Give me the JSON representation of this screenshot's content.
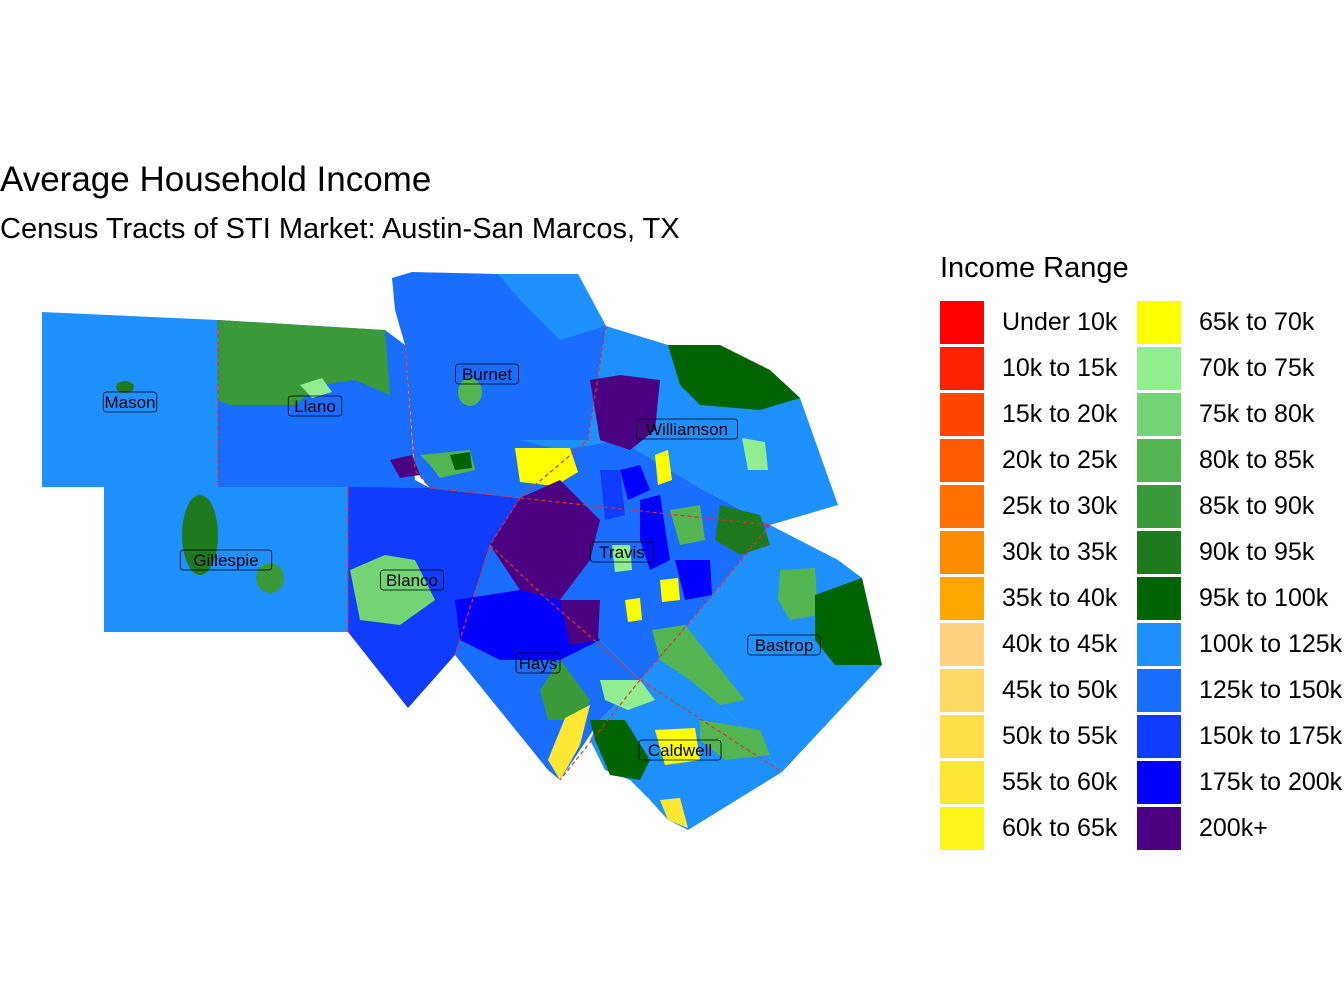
{
  "map": {
    "title": "Average Household Income",
    "subtitle": "Census Tracts of STI Market: Austin-San Marcos, TX",
    "legend_title": "Income Range",
    "legend": [
      {
        "label": "Under 10k",
        "color": "#ff0000"
      },
      {
        "label": "10k to 15k",
        "color": "#ff2200"
      },
      {
        "label": "15k to 20k",
        "color": "#ff4500"
      },
      {
        "label": "20k to 25k",
        "color": "#ff5a00"
      },
      {
        "label": "25k to 30k",
        "color": "#ff7000"
      },
      {
        "label": "30k to 35k",
        "color": "#ff8c00"
      },
      {
        "label": "35k to 40k",
        "color": "#ffa500"
      },
      {
        "label": "40k to 45k",
        "color": "#ffd280"
      },
      {
        "label": "45k to 50k",
        "color": "#ffd966"
      },
      {
        "label": "50k to 55k",
        "color": "#ffe04a"
      },
      {
        "label": "55k to 60k",
        "color": "#ffe833"
      },
      {
        "label": "60k to 65k",
        "color": "#fff51a"
      },
      {
        "label": "65k to 70k",
        "color": "#ffff00"
      },
      {
        "label": "70k to 75k",
        "color": "#90ee90"
      },
      {
        "label": "75k to 80k",
        "color": "#72d472"
      },
      {
        "label": "80k to 85k",
        "color": "#52b552"
      },
      {
        "label": "85k to 90k",
        "color": "#3a9a3a"
      },
      {
        "label": "90k to 95k",
        "color": "#1e7a1e"
      },
      {
        "label": "95k to 100k",
        "color": "#006400"
      },
      {
        "label": "100k to 125k",
        "color": "#1e90ff"
      },
      {
        "label": "125k to 150k",
        "color": "#1a6eff"
      },
      {
        "label": "150k to 175k",
        "color": "#0f3cff"
      },
      {
        "label": "175k to 200k",
        "color": "#0000ff"
      },
      {
        "label": "200k+",
        "color": "#4b0082"
      }
    ],
    "counties": [
      "Mason",
      "Llano",
      "Burnet",
      "Williamson",
      "Gillespie",
      "Blanco",
      "Travis",
      "Hays",
      "Bastrop",
      "Caldwell"
    ]
  }
}
